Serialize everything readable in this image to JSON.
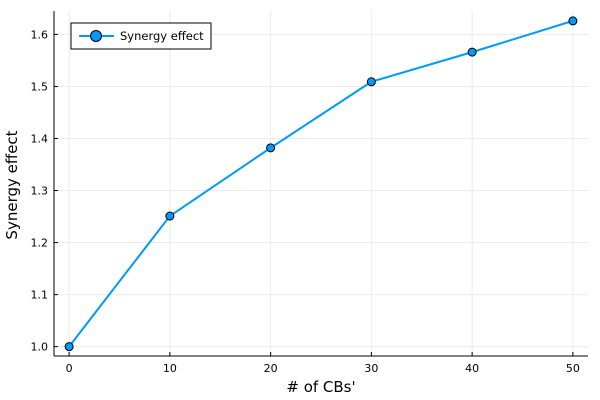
{
  "chart_data": {
    "type": "line",
    "title": "",
    "xlabel": "# of CBs'",
    "ylabel": "Synergy effect",
    "x": [
      0,
      10,
      20,
      30,
      40,
      50
    ],
    "series": [
      {
        "name": "Synergy effect",
        "values": [
          1.0,
          1.251,
          1.382,
          1.509,
          1.566,
          1.626
        ]
      }
    ],
    "xlim": [
      -1.5,
      51.5
    ],
    "ylim": [
      0.982,
      1.645
    ],
    "xticks": [
      0,
      10,
      20,
      30,
      40,
      50
    ],
    "yticks": [
      1.0,
      1.1,
      1.2,
      1.3,
      1.4,
      1.5,
      1.6
    ],
    "grid": true,
    "legend_position": "top-left",
    "colors": {
      "series": "#009af9",
      "marker_stroke": "#000000",
      "grid": "#ebebeb",
      "axis": "#000000"
    }
  }
}
